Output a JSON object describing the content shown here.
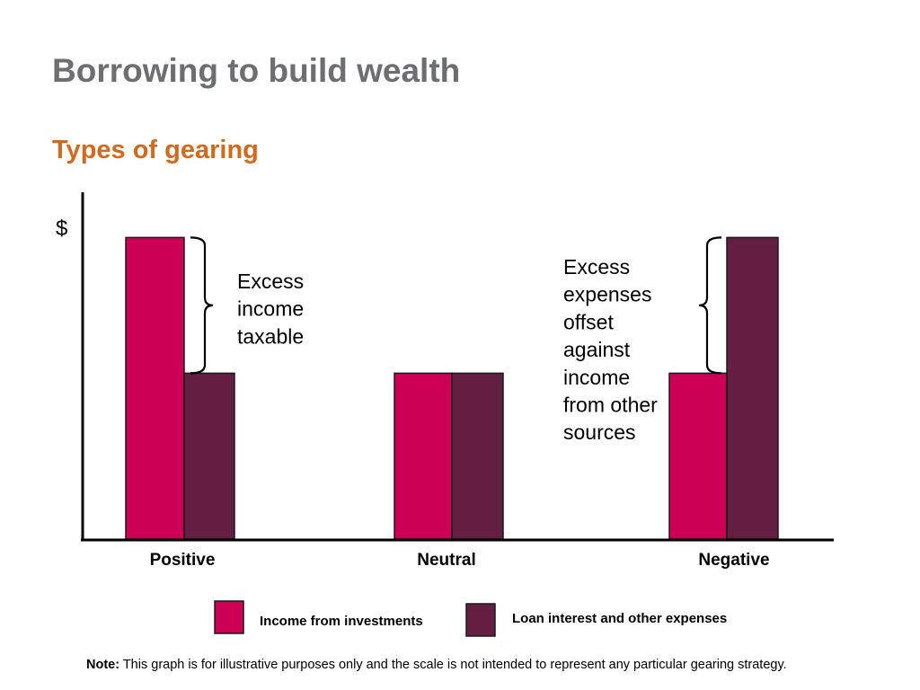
{
  "header": {
    "title": "Borrowing to build wealth",
    "subtitle": "Types of gearing"
  },
  "chart_data": {
    "type": "bar",
    "ylabel": "$",
    "categories": [
      "Positive",
      "Neutral",
      "Negative"
    ],
    "series": [
      {
        "name": "Income from investments",
        "color": "#cc0055",
        "values": [
          100,
          55,
          55
        ]
      },
      {
        "name": "Loan interest and other expenses",
        "color": "#641e42",
        "values": [
          55,
          55,
          100
        ]
      }
    ],
    "ylim": [
      0,
      115
    ],
    "grid": false,
    "legend": "bottom",
    "annotations": [
      {
        "category": "Positive",
        "lines": [
          "Excess",
          "income",
          "taxable"
        ]
      },
      {
        "category": "Negative",
        "lines": [
          "Excess",
          "expenses",
          "offset",
          "against",
          "income",
          "from other",
          "sources"
        ]
      }
    ]
  },
  "footer": {
    "note_label": "Note:",
    "note_text": " This graph is for illustrative purposes only and the scale is not intended to represent any particular gearing strategy."
  }
}
